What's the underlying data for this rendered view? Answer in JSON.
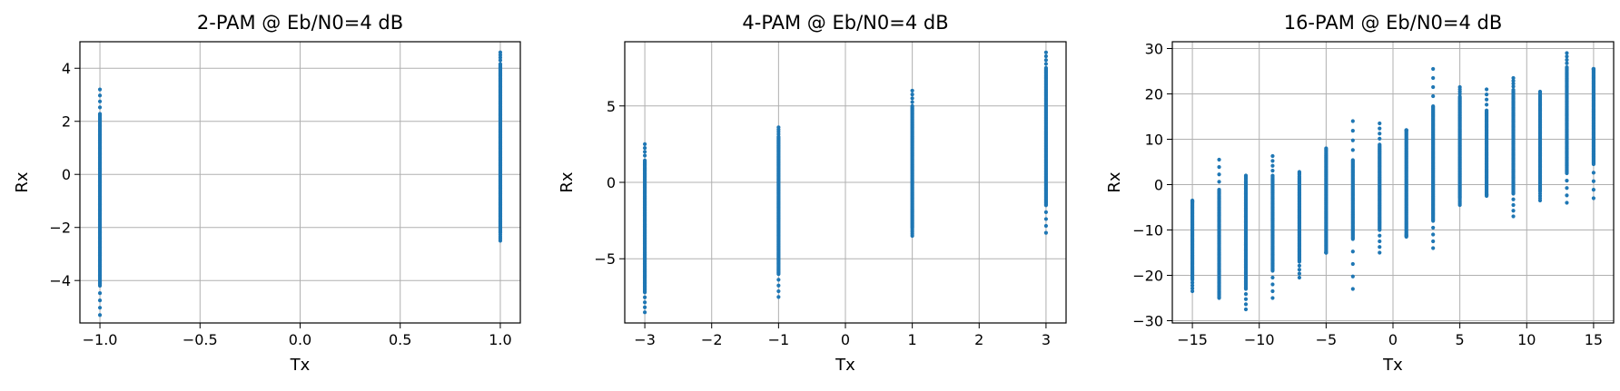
{
  "chart_data": [
    {
      "type": "scatter",
      "title": "2-PAM @ Eb/N0=4 dB",
      "xlabel": "Tx",
      "ylabel": "Rx",
      "xlim": [
        -1.1,
        1.1
      ],
      "ylim": [
        -5.6,
        5.0
      ],
      "xticks": [
        -1.0,
        -0.5,
        0.0,
        0.5,
        1.0
      ],
      "xtick_labels": [
        "−1.0",
        "−0.5",
        "0.0",
        "0.5",
        "1.0"
      ],
      "yticks": [
        -4,
        -2,
        0,
        2,
        4
      ],
      "ytick_labels": [
        "−4",
        "−2",
        "0",
        "2",
        "4"
      ],
      "grid": true,
      "marker_color": "#1f77b4",
      "series": [
        {
          "x": -1.0,
          "y_min": -5.3,
          "y_max": 3.2,
          "dense_min": -4.2,
          "dense_max": 2.3
        },
        {
          "x": 1.0,
          "y_min": -2.5,
          "y_max": 4.6,
          "dense_min": -2.2,
          "dense_max": 4.2
        }
      ]
    },
    {
      "type": "scatter",
      "title": "4-PAM @ Eb/N0=4 dB",
      "xlabel": "Tx",
      "ylabel": "Rx",
      "xlim": [
        -3.3,
        3.3
      ],
      "ylim": [
        -9.2,
        9.2
      ],
      "xticks": [
        -3,
        -2,
        -1,
        0,
        1,
        2,
        3
      ],
      "xtick_labels": [
        "−3",
        "−2",
        "−1",
        "0",
        "1",
        "2",
        "3"
      ],
      "yticks": [
        -5,
        0,
        5
      ],
      "ytick_labels": [
        "−5",
        "0",
        "5"
      ],
      "grid": true,
      "marker_color": "#1f77b4",
      "series": [
        {
          "x": -3,
          "y_min": -8.5,
          "y_max": 2.5,
          "dense_min": -7.2,
          "dense_max": 1.5
        },
        {
          "x": -1,
          "y_min": -7.5,
          "y_max": 3.6,
          "dense_min": -6.0,
          "dense_max": 3.0
        },
        {
          "x": 1,
          "y_min": -3.5,
          "y_max": 6.0,
          "dense_min": -3.0,
          "dense_max": 5.0
        },
        {
          "x": 3,
          "y_min": -3.3,
          "y_max": 8.5,
          "dense_min": -1.5,
          "dense_max": 7.5
        }
      ]
    },
    {
      "type": "scatter",
      "title": "16-PAM @ Eb/N0=4 dB",
      "xlabel": "Tx",
      "ylabel": "Rx",
      "xlim": [
        -16.5,
        16.5
      ],
      "ylim": [
        -30.5,
        31.5
      ],
      "xticks": [
        -15,
        -10,
        -5,
        0,
        5,
        10,
        15
      ],
      "xtick_labels": [
        "−15",
        "−10",
        "−5",
        "0",
        "5",
        "10",
        "15"
      ],
      "yticks": [
        -30,
        -20,
        -10,
        0,
        10,
        20,
        30
      ],
      "ytick_labels": [
        "−30",
        "−20",
        "−10",
        "0",
        "10",
        "20",
        "30"
      ],
      "grid": true,
      "marker_color": "#1f77b4",
      "series": [
        {
          "x": -15,
          "y_min": -23.5,
          "y_max": -3.5,
          "dense_min": -21,
          "dense_max": -4
        },
        {
          "x": -13,
          "y_min": -25,
          "y_max": 5.5,
          "dense_min": -24,
          "dense_max": -1
        },
        {
          "x": -11,
          "y_min": -27.5,
          "y_max": 2,
          "dense_min": -23,
          "dense_max": 1
        },
        {
          "x": -9,
          "y_min": -25,
          "y_max": 6.3,
          "dense_min": -19,
          "dense_max": 2
        },
        {
          "x": -7,
          "y_min": -20.5,
          "y_max": 2.8,
          "dense_min": -17,
          "dense_max": 2
        },
        {
          "x": -5,
          "y_min": -15,
          "y_max": 8,
          "dense_min": -15,
          "dense_max": 7
        },
        {
          "x": -3,
          "y_min": -23,
          "y_max": 14,
          "dense_min": -12,
          "dense_max": 5.5
        },
        {
          "x": -1,
          "y_min": -15,
          "y_max": 13.5,
          "dense_min": -10,
          "dense_max": 9
        },
        {
          "x": 1,
          "y_min": -11.5,
          "y_max": 12,
          "dense_min": -11,
          "dense_max": 12
        },
        {
          "x": 3,
          "y_min": -14,
          "y_max": 25.5,
          "dense_min": -8,
          "dense_max": 17.5
        },
        {
          "x": 5,
          "y_min": -4.5,
          "y_max": 21.5,
          "dense_min": -3,
          "dense_max": 19.5
        },
        {
          "x": 7,
          "y_min": -2.5,
          "y_max": 21,
          "dense_min": -2,
          "dense_max": 16.5
        },
        {
          "x": 9,
          "y_min": -7,
          "y_max": 23.5,
          "dense_min": -2,
          "dense_max": 21
        },
        {
          "x": 11,
          "y_min": -3.5,
          "y_max": 20.5,
          "dense_min": -1.5,
          "dense_max": 19.5
        },
        {
          "x": 13,
          "y_min": -4,
          "y_max": 29,
          "dense_min": 2.5,
          "dense_max": 26
        },
        {
          "x": 15,
          "y_min": -3,
          "y_max": 25.5,
          "dense_min": 4.5,
          "dense_max": 25.5
        }
      ]
    }
  ]
}
